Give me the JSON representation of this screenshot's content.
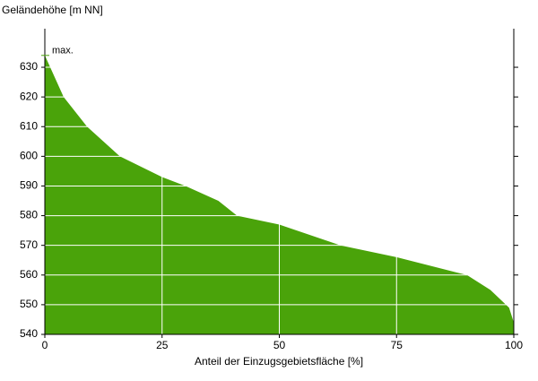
{
  "chart_data": {
    "type": "area",
    "ylabel": "Geländehöhe [m NN]",
    "xlabel": "Anteil der Einzugsgebietsfläche [%]",
    "x": [
      0,
      4,
      9,
      16,
      25,
      30,
      37,
      41,
      50,
      63,
      75,
      90,
      95,
      99,
      100
    ],
    "values": [
      634,
      620,
      610,
      600,
      593,
      590,
      585,
      580,
      577,
      570,
      566,
      560,
      555,
      549,
      544
    ],
    "color": "#4aa30a",
    "annotations": [
      {
        "text": "max.",
        "y": 634
      }
    ],
    "xlim": [
      0,
      100
    ],
    "xticks": [
      0,
      25,
      50,
      75,
      100
    ],
    "ylim": [
      540,
      643
    ],
    "yticks": [
      540,
      550,
      560,
      570,
      580,
      590,
      600,
      610,
      620,
      630
    ],
    "grid": true
  }
}
